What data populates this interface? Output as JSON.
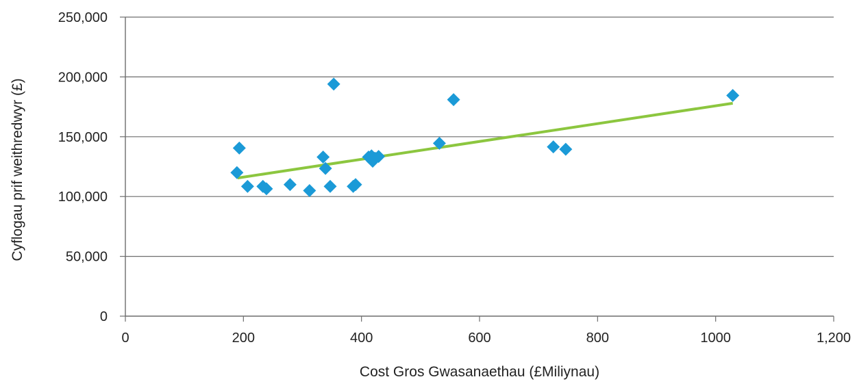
{
  "chart_data": {
    "type": "scatter",
    "title": "",
    "xlabel": "Cost Gros Gwasanaethau (£Miliynau)",
    "ylabel": "Cyflogau prif weithredwyr (£)",
    "xlim": [
      0,
      1200
    ],
    "ylim": [
      0,
      250000
    ],
    "xticks": [
      0,
      200,
      400,
      600,
      800,
      1000,
      1200
    ],
    "xtick_labels": [
      "0",
      "200",
      "400",
      "600",
      "800",
      "1000",
      "1,200"
    ],
    "yticks": [
      0,
      50000,
      100000,
      150000,
      200000,
      250000
    ],
    "ytick_labels": [
      "0",
      "50,000",
      "100,000",
      "150,000",
      "200,000",
      "250,000"
    ],
    "grid": "horizontal",
    "marker_color": "#1b9ad7",
    "trendline_color": "#8cc63f",
    "points": [
      {
        "x": 189,
        "y": 120000
      },
      {
        "x": 193,
        "y": 140500
      },
      {
        "x": 207,
        "y": 108500
      },
      {
        "x": 233,
        "y": 108500
      },
      {
        "x": 239,
        "y": 106500
      },
      {
        "x": 279,
        "y": 110000
      },
      {
        "x": 312,
        "y": 105000
      },
      {
        "x": 335,
        "y": 133000
      },
      {
        "x": 339,
        "y": 123500
      },
      {
        "x": 347,
        "y": 108500
      },
      {
        "x": 353,
        "y": 194000
      },
      {
        "x": 386,
        "y": 108500
      },
      {
        "x": 390,
        "y": 110000
      },
      {
        "x": 412,
        "y": 133000
      },
      {
        "x": 417,
        "y": 134000
      },
      {
        "x": 419,
        "y": 129500
      },
      {
        "x": 423,
        "y": 132000
      },
      {
        "x": 429,
        "y": 133500
      },
      {
        "x": 532,
        "y": 144500
      },
      {
        "x": 556,
        "y": 181000
      },
      {
        "x": 725,
        "y": 141500
      },
      {
        "x": 746,
        "y": 139500
      },
      {
        "x": 1029,
        "y": 184500
      }
    ],
    "trendline": {
      "x": [
        190,
        1029
      ],
      "y": [
        115500,
        178000
      ]
    }
  }
}
